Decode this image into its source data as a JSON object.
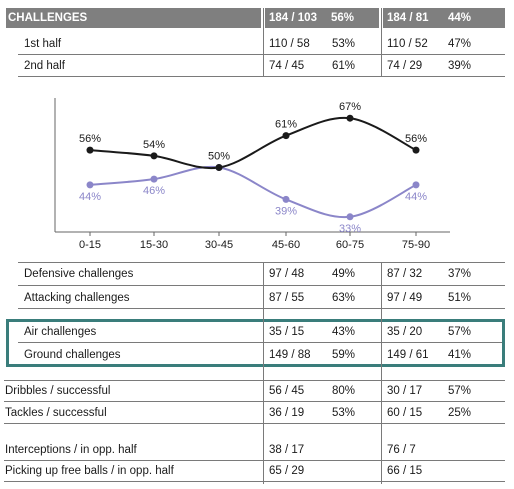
{
  "header": {
    "title": "CHALLENGES",
    "team1_total": "184 / 103",
    "team1_pct": "56%",
    "team2_total": "184 / 81",
    "team2_pct": "44%"
  },
  "halves": [
    {
      "label": "1st half",
      "t1": "110 / 58",
      "t1_pct": "53%",
      "t2": "110 / 52",
      "t2_pct": "47%"
    },
    {
      "label": "2nd half",
      "t1": "74 / 45",
      "t1_pct": "61%",
      "t2": "74 / 29",
      "t2_pct": "39%"
    }
  ],
  "chart_data": {
    "type": "line",
    "categories": [
      "0-15",
      "15-30",
      "30-45",
      "45-60",
      "60-75",
      "75-90"
    ],
    "series": [
      {
        "values": [
          56,
          54,
          50,
          61,
          67,
          56
        ],
        "labels": [
          "56%",
          "54%",
          "50%",
          "61%",
          "67%",
          "56%"
        ],
        "color": "#1a1a1a"
      },
      {
        "values": [
          44,
          46,
          50,
          39,
          33,
          44
        ],
        "labels": [
          "44%",
          "46%",
          "",
          "39%",
          "33%",
          "44%"
        ],
        "color": "#8b86c9"
      }
    ],
    "ylim": [
      25,
      75
    ],
    "grid": false,
    "title": "",
    "xlabel": "",
    "ylabel": ""
  },
  "challenges": [
    {
      "label": "Defensive challenges",
      "t1": "97 / 48",
      "t1_pct": "49%",
      "t2": "87 / 32",
      "t2_pct": "37%"
    },
    {
      "label": "Attacking challenges",
      "t1": "87 / 55",
      "t1_pct": "63%",
      "t2": "97 / 49",
      "t2_pct": "51%"
    }
  ],
  "air_ground": [
    {
      "label": "Air challenges",
      "t1": "35 / 15",
      "t1_pct": "43%",
      "t2": "35 / 20",
      "t2_pct": "57%"
    },
    {
      "label": "Ground challenges",
      "t1": "149 / 88",
      "t1_pct": "59%",
      "t2": "149 / 61",
      "t2_pct": "41%"
    }
  ],
  "dribbles_tackles": [
    {
      "label": "Dribbles / successful",
      "t1": "56 / 45",
      "t1_pct": "80%",
      "t2": "30 / 17",
      "t2_pct": "57%"
    },
    {
      "label": "Tackles / successful",
      "t1": "36 / 19",
      "t1_pct": "53%",
      "t2": "60 / 15",
      "t2_pct": "25%"
    }
  ],
  "interceptions": [
    {
      "label": "Interceptions / in opp. half",
      "t1": "38 / 17",
      "t2": "76 / 7"
    },
    {
      "label": "Picking up free balls / in opp. half",
      "t1": "65 / 29",
      "t2": "66 / 15"
    }
  ]
}
